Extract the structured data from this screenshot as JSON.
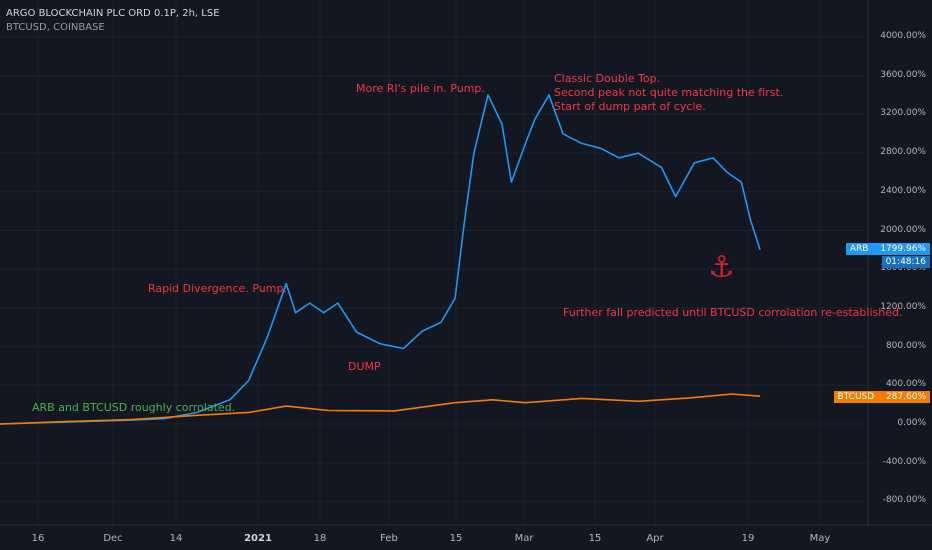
{
  "header": {
    "title": "ARGO BLOCKCHAIN PLC ORD 0.1P, 2h, LSE",
    "subtitle": "BTCUSD, COINBASE"
  },
  "annotations": {
    "a1": "ARB and BTCUSD roughly corrolated.",
    "a2": "Rapid Divergence. Pump.",
    "a3": "DUMP",
    "a4": "More RI's pile in. Pump.",
    "a5_l1": "Classic Double Top.",
    "a5_l2": "Second peak not quite matching the first.",
    "a5_l3": "Start of dump part of cycle.",
    "a6": "Further fall predicted until BTCUSD corrolation re-established.",
    "anchor_icon": "anchor-icon"
  },
  "badges": {
    "arb_name": "ARB",
    "arb_value": "1799.96%",
    "arb_time": "01:48:16",
    "btc_name": "BTCUSD",
    "btc_value": "287.60%"
  },
  "colors": {
    "background": "#131722",
    "arb": "#2196f3",
    "btc": "#f57c00",
    "annotation_red": "#f23645",
    "annotation_green": "#4caf50",
    "grid": "#1e2230"
  },
  "chart_data": {
    "type": "line",
    "title": "ARGO BLOCKCHAIN PLC ORD 0.1P, 2h, LSE",
    "ylabel_unit": "%",
    "ylim": [
      -1000,
      4100
    ],
    "y_ticks": [
      "4000.00%",
      "3600.00%",
      "3200.00%",
      "2800.00%",
      "2400.00%",
      "2000.00%",
      "1600.00%",
      "1200.00%",
      "800.00%",
      "400.00%",
      "0.00%",
      "-400.00%",
      "-800.00%"
    ],
    "x_ticks": [
      "16",
      "Dec",
      "14",
      "2021",
      "18",
      "Feb",
      "15",
      "Mar",
      "15",
      "Apr",
      "19",
      "May"
    ],
    "x_range": [
      "2020-11-09",
      "2021-05-13"
    ],
    "grid": true,
    "series": [
      {
        "name": "ARB",
        "color": "#2196f3",
        "points": [
          [
            "2020-11-09",
            0
          ],
          [
            "2020-11-16",
            10
          ],
          [
            "2020-11-23",
            20
          ],
          [
            "2020-11-30",
            30
          ],
          [
            "2020-12-07",
            40
          ],
          [
            "2020-12-14",
            55
          ],
          [
            "2020-12-21",
            120
          ],
          [
            "2020-12-28",
            250
          ],
          [
            "2021-01-01",
            450
          ],
          [
            "2021-01-05",
            900
          ],
          [
            "2021-01-09",
            1450
          ],
          [
            "2021-01-11",
            1150
          ],
          [
            "2021-01-14",
            1250
          ],
          [
            "2021-01-17",
            1150
          ],
          [
            "2021-01-20",
            1250
          ],
          [
            "2021-01-24",
            950
          ],
          [
            "2021-01-29",
            830
          ],
          [
            "2021-02-03",
            780
          ],
          [
            "2021-02-07",
            960
          ],
          [
            "2021-02-11",
            1050
          ],
          [
            "2021-02-14",
            1300
          ],
          [
            "2021-02-16",
            2100
          ],
          [
            "2021-02-18",
            2800
          ],
          [
            "2021-02-21",
            3400
          ],
          [
            "2021-02-24",
            3100
          ],
          [
            "2021-02-26",
            2500
          ],
          [
            "2021-03-01",
            2900
          ],
          [
            "2021-03-03",
            3150
          ],
          [
            "2021-03-06",
            3400
          ],
          [
            "2021-03-09",
            3000
          ],
          [
            "2021-03-13",
            2900
          ],
          [
            "2021-03-17",
            2850
          ],
          [
            "2021-03-21",
            2750
          ],
          [
            "2021-03-25",
            2800
          ],
          [
            "2021-03-30",
            2650
          ],
          [
            "2021-04-02",
            2350
          ],
          [
            "2021-04-06",
            2700
          ],
          [
            "2021-04-10",
            2750
          ],
          [
            "2021-04-13",
            2600
          ],
          [
            "2021-04-16",
            2500
          ],
          [
            "2021-04-18",
            2100
          ],
          [
            "2021-04-20",
            1800
          ]
        ]
      },
      {
        "name": "BTCUSD",
        "color": "#f57c00",
        "points": [
          [
            "2020-11-09",
            0
          ],
          [
            "2020-11-23",
            25
          ],
          [
            "2020-12-07",
            45
          ],
          [
            "2020-12-21",
            90
          ],
          [
            "2021-01-01",
            120
          ],
          [
            "2021-01-09",
            185
          ],
          [
            "2021-01-18",
            140
          ],
          [
            "2021-02-01",
            135
          ],
          [
            "2021-02-14",
            220
          ],
          [
            "2021-02-22",
            250
          ],
          [
            "2021-03-01",
            220
          ],
          [
            "2021-03-13",
            265
          ],
          [
            "2021-03-25",
            235
          ],
          [
            "2021-04-05",
            270
          ],
          [
            "2021-04-14",
            310
          ],
          [
            "2021-04-20",
            287.6
          ]
        ]
      }
    ]
  }
}
